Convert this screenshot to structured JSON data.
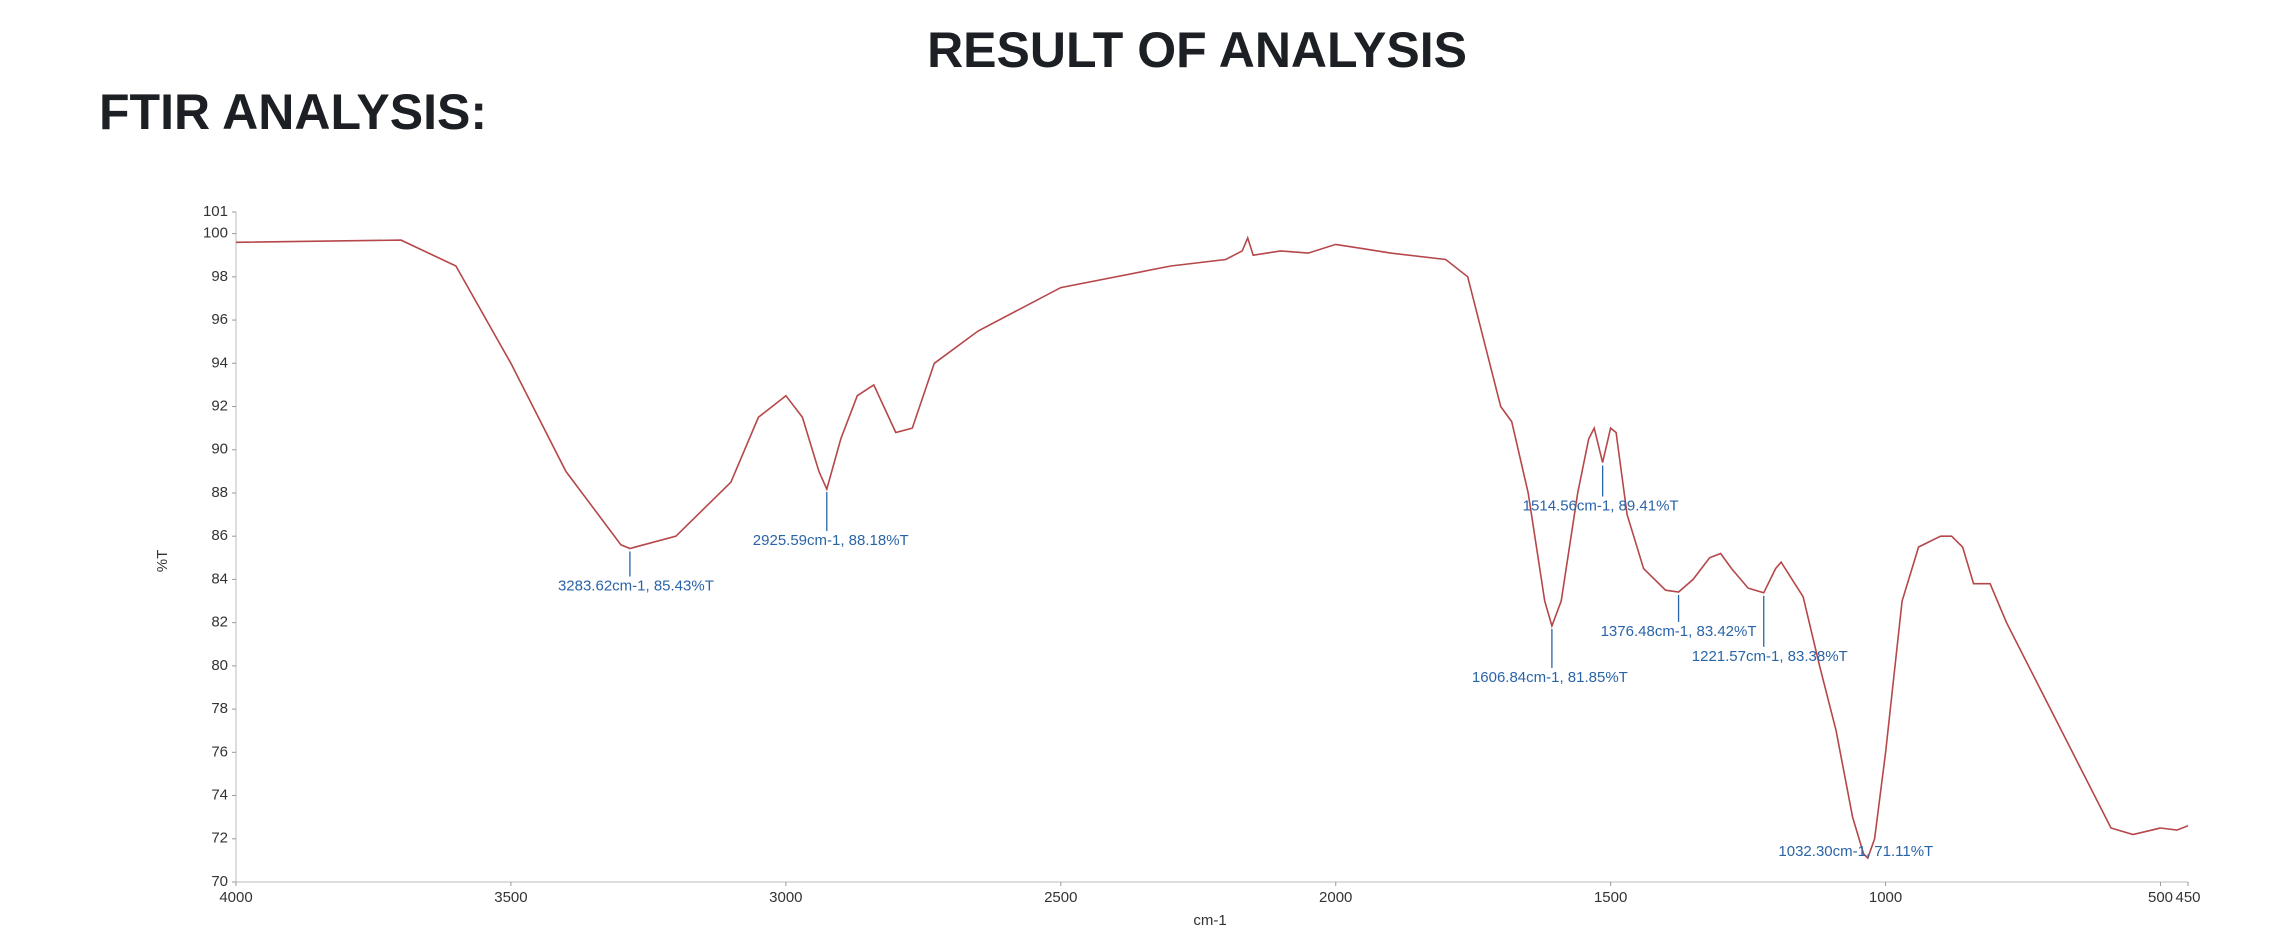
{
  "page": {
    "title": "RESULT OF ANALYSIS",
    "section": "FTIR ANALYSIS:"
  },
  "chart_data": {
    "type": "line",
    "xlabel": "cm-1",
    "ylabel": "%T",
    "color": "#b5474a",
    "annotation_color": "#2a64a8",
    "xlim": [
      4000,
      450
    ],
    "ylim": [
      70,
      101
    ],
    "xticks": [
      4000,
      3500,
      3000,
      2500,
      2000,
      1500,
      1000,
      500,
      450
    ],
    "yticks": [
      70,
      72,
      74,
      76,
      78,
      80,
      82,
      84,
      86,
      88,
      90,
      92,
      94,
      96,
      98,
      100,
      101
    ],
    "grid": false,
    "x": [
      4000,
      3700,
      3600,
      3500,
      3400,
      3300,
      3283.62,
      3200,
      3100,
      3050,
      3000,
      2970,
      2940,
      2925.59,
      2900,
      2870,
      2840,
      2800,
      2770,
      2730,
      2650,
      2500,
      2300,
      2200,
      2170,
      2160,
      2150,
      2100,
      2050,
      2000,
      1950,
      1900,
      1800,
      1760,
      1730,
      1700,
      1680,
      1650,
      1620,
      1606.84,
      1590,
      1560,
      1540,
      1530,
      1514.56,
      1500,
      1490,
      1470,
      1440,
      1400,
      1376.48,
      1350,
      1320,
      1300,
      1280,
      1250,
      1221.57,
      1200,
      1190,
      1170,
      1150,
      1120,
      1090,
      1060,
      1040,
      1032.3,
      1020,
      1000,
      970,
      940,
      900,
      880,
      860,
      840,
      810,
      780,
      720,
      650,
      590,
      550,
      500,
      470,
      450
    ],
    "values": [
      99.6,
      99.7,
      98.5,
      94,
      89,
      85.6,
      85.43,
      86,
      88.5,
      91.5,
      92.5,
      91.5,
      89,
      88.18,
      90.5,
      92.5,
      93,
      90.8,
      91,
      94,
      95.5,
      97.5,
      98.5,
      98.8,
      99.2,
      99.8,
      99,
      99.2,
      99.1,
      99.5,
      99.3,
      99.1,
      98.8,
      98,
      95,
      92,
      91.3,
      88,
      83,
      81.85,
      83,
      88,
      90.5,
      91,
      89.41,
      91,
      90.8,
      87,
      84.5,
      83.5,
      83.42,
      84,
      85,
      85.2,
      84.5,
      83.6,
      83.38,
      84.5,
      84.8,
      84,
      83.2,
      80,
      77,
      73,
      71.3,
      71.11,
      72,
      76,
      83,
      85.5,
      86,
      86,
      85.5,
      83.8,
      83.8,
      82,
      79,
      75.5,
      72.5,
      72.2,
      72.5,
      72.4,
      72.6
    ],
    "annotations": [
      {
        "text": "3283.62cm-1, 85.43%T",
        "x": 3283.62,
        "y": 85.43
      },
      {
        "text": "2925.59cm-1, 88.18%T",
        "x": 2925.59,
        "y": 88.18
      },
      {
        "text": "1514.56cm-1, 89.41%T",
        "x": 1514.56,
        "y": 89.41
      },
      {
        "text": "1606.84cm-1, 81.85%T",
        "x": 1606.84,
        "y": 81.85
      },
      {
        "text": "1376.48cm-1, 83.42%T",
        "x": 1376.48,
        "y": 83.42
      },
      {
        "text": "1221.57cm-1, 83.38%T",
        "x": 1221.57,
        "y": 83.38
      },
      {
        "text": "1032.30cm-1, 71.11%T",
        "x": 1032.3,
        "y": 71.11
      }
    ]
  }
}
